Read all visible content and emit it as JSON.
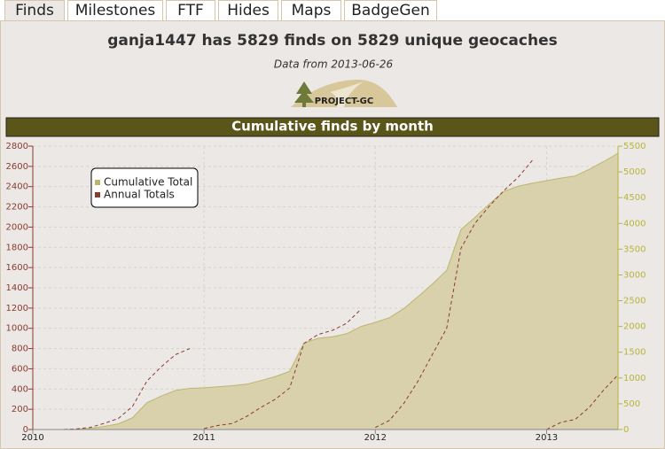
{
  "tabs": [
    "Finds",
    "Milestones",
    "FTF",
    "Hides",
    "Maps",
    "BadgeGen"
  ],
  "header": {
    "title": "ganja1447 has 5829 finds on 5829 unique geocaches",
    "subtitle": "Data from 2013-06-26",
    "logo": "PROJECT-GC"
  },
  "chart_data": {
    "type": "line",
    "title": "Cumulative finds by month",
    "x": [
      2010,
      2010.083,
      2010.167,
      2010.25,
      2010.333,
      2010.417,
      2010.5,
      2010.583,
      2010.667,
      2010.75,
      2010.833,
      2010.917,
      2011,
      2011.083,
      2011.167,
      2011.25,
      2011.333,
      2011.417,
      2011.5,
      2011.583,
      2011.667,
      2011.75,
      2011.833,
      2011.917,
      2012,
      2012.083,
      2012.167,
      2012.25,
      2012.333,
      2012.417,
      2012.5,
      2012.583,
      2012.667,
      2012.75,
      2012.833,
      2012.917,
      2013,
      2013.083,
      2013.167,
      2013.25,
      2013.333,
      2013.417
    ],
    "series": [
      {
        "name": "Cumulative Total",
        "color": "#bcb66a",
        "fill": "#d9d1ab",
        "style": "area",
        "axis": "y2",
        "values": [
          0,
          0,
          0,
          5,
          20,
          60,
          110,
          230,
          520,
          650,
          760,
          800,
          810,
          830,
          850,
          880,
          950,
          1030,
          1130,
          1680,
          1770,
          1800,
          1860,
          2000,
          2080,
          2170,
          2350,
          2580,
          2820,
          3090,
          3880,
          4120,
          4380,
          4620,
          4720,
          4780,
          4830,
          4880,
          4920,
          5050,
          5200,
          5360
        ]
      },
      {
        "name": "Annual Totals",
        "color": "#8a3b2e",
        "style": "dashed",
        "segment_by": "year",
        "values": [
          0,
          0,
          0,
          5,
          20,
          60,
          110,
          230,
          480,
          620,
          740,
          800,
          10,
          40,
          60,
          130,
          220,
          300,
          410,
          850,
          940,
          980,
          1050,
          1190,
          20,
          90,
          260,
          480,
          740,
          1000,
          1790,
          2040,
          2210,
          2360,
          2490,
          2660,
          0,
          70,
          100,
          220,
          390,
          540
        ]
      }
    ],
    "xlim": [
      2010,
      2013.417
    ],
    "xticks": [
      2010,
      2011,
      2012,
      2013
    ],
    "ylim": [
      0,
      2800
    ],
    "yticks": [
      0,
      200,
      400,
      600,
      800,
      1000,
      1200,
      1400,
      1600,
      1800,
      2000,
      2200,
      2400,
      2600,
      2800
    ],
    "y2lim": [
      0,
      5500
    ],
    "y2ticks": [
      0,
      500,
      1000,
      1500,
      2000,
      2500,
      3000,
      3500,
      4000,
      4500,
      5000,
      5500
    ],
    "y_color": "#8a3b2e",
    "y2_color": "#b5b53c",
    "grid": true,
    "legend": "top-left"
  }
}
